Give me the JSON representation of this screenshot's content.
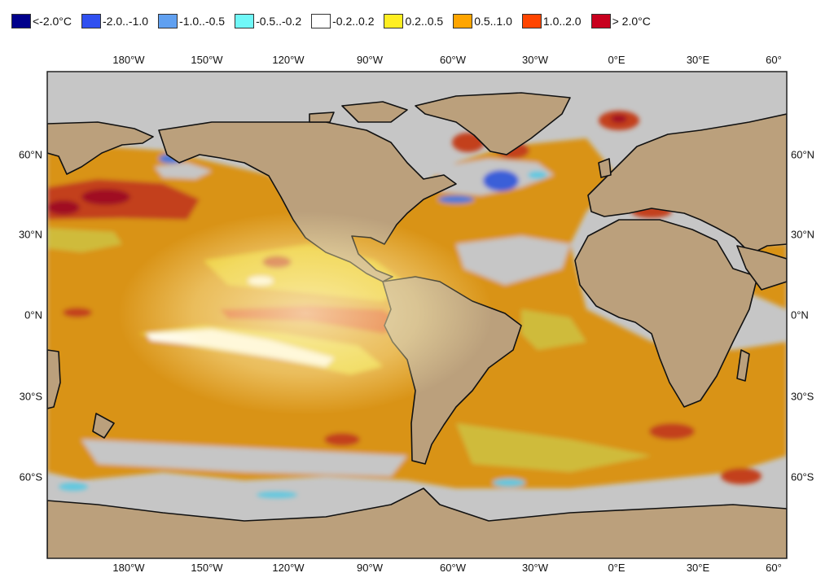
{
  "legend": [
    {
      "label": "<-2.0°C",
      "color": "#00008b"
    },
    {
      "label": "-2.0..-1.0",
      "color": "#3050f0"
    },
    {
      "label": "-1.0..-0.5",
      "color": "#60a0f0"
    },
    {
      "label": "-0.5..-0.2",
      "color": "#70f8f8"
    },
    {
      "label": "-0.2..0.2",
      "color": "#ffffff"
    },
    {
      "label": "0.2..0.5",
      "color": "#ffee22"
    },
    {
      "label": "0.5..1.0",
      "color": "#ffa500"
    },
    {
      "label": "1.0..2.0",
      "color": "#ff4500"
    },
    {
      "label": "> 2.0°C",
      "color": "#c8001e"
    }
  ],
  "lon_ticks": [
    "180°W",
    "150°W",
    "120°W",
    "90°W",
    "60°W",
    "30°W",
    "0°E",
    "30°E",
    "60°"
  ],
  "lat_ticks_left": [
    "60°N",
    "30°N",
    "0°N",
    "30°S",
    "60°S"
  ],
  "lat_ticks_right": [
    "60°N",
    "30°N",
    "0°N",
    "30°S",
    "60°S"
  ],
  "colors": {
    "ocean_neutral": "#c6c6c6",
    "land": "#bba07c",
    "frame": "#222222"
  }
}
